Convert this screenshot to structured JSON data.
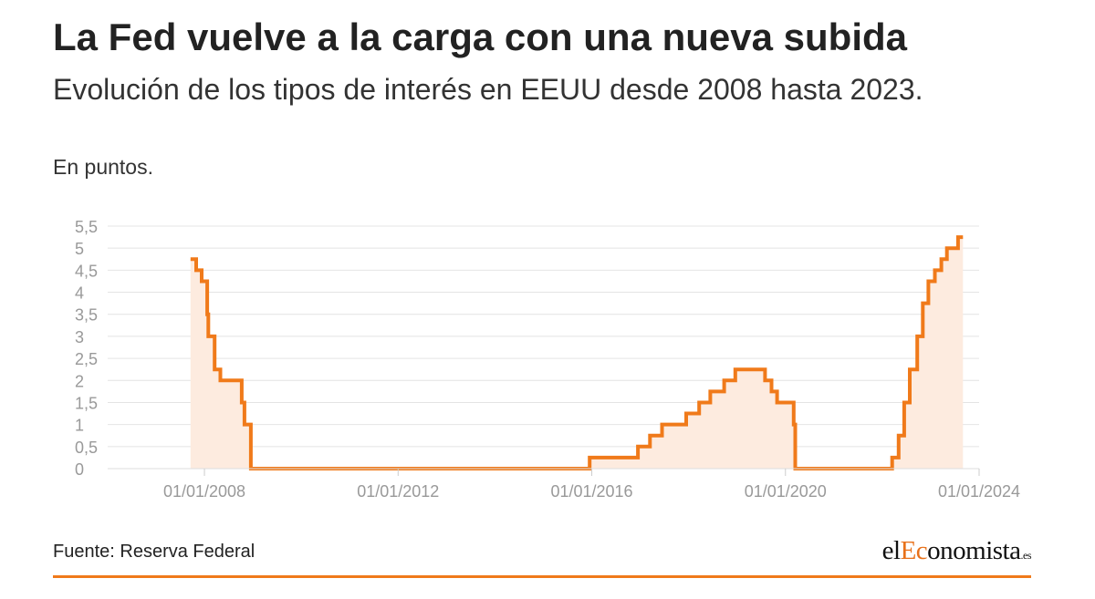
{
  "header": {
    "title": "La Fed vuelve a la carga con una nueva subida",
    "subtitle": "Evolución de los tipos de interés en EEUU desde 2008 hasta 2023.",
    "units": "En puntos."
  },
  "footer": {
    "source": "Fuente: Reserva Federal",
    "logo": {
      "prefix": "el",
      "accent": "Ec",
      "rest": "onomista",
      "tld": ".es"
    }
  },
  "colors": {
    "line": "#f07a1a",
    "area": "#fdebdf",
    "grid": "#e4e4e4",
    "axis_text": "#999999",
    "accent": "#e8711a"
  },
  "chart_data": {
    "type": "area",
    "step": true,
    "title": "",
    "xlabel": "",
    "ylabel": "",
    "ylim": [
      0,
      5.5
    ],
    "xlim": [
      "2006-01-01",
      "2024-01-01"
    ],
    "grid": true,
    "y_ticks": [
      {
        "v": 0,
        "label": "0"
      },
      {
        "v": 0.5,
        "label": "0,5"
      },
      {
        "v": 1,
        "label": "1"
      },
      {
        "v": 1.5,
        "label": "1,5"
      },
      {
        "v": 2,
        "label": "2"
      },
      {
        "v": 2.5,
        "label": "2,5"
      },
      {
        "v": 3,
        "label": "3"
      },
      {
        "v": 3.5,
        "label": "3,5"
      },
      {
        "v": 4,
        "label": "4"
      },
      {
        "v": 4.5,
        "label": "4,5"
      },
      {
        "v": 5,
        "label": "5"
      },
      {
        "v": 5.5,
        "label": "5,5"
      }
    ],
    "x_ticks": [
      {
        "date": "2008-01-01",
        "label": "01/01/2008"
      },
      {
        "date": "2012-01-01",
        "label": "01/01/2012"
      },
      {
        "date": "2016-01-01",
        "label": "01/01/2016"
      },
      {
        "date": "2020-01-01",
        "label": "01/01/2020"
      },
      {
        "date": "2024-01-01",
        "label": "01/01/2024"
      }
    ],
    "series": [
      {
        "points": [
          [
            "2007-09-18",
            4.75
          ],
          [
            "2007-10-31",
            4.5
          ],
          [
            "2007-12-11",
            4.25
          ],
          [
            "2008-01-22",
            3.5
          ],
          [
            "2008-01-30",
            3.0
          ],
          [
            "2008-03-18",
            2.25
          ],
          [
            "2008-04-30",
            2.0
          ],
          [
            "2008-10-08",
            1.5
          ],
          [
            "2008-10-29",
            1.0
          ],
          [
            "2008-12-16",
            0.0
          ],
          [
            "2015-12-16",
            0.25
          ],
          [
            "2016-12-14",
            0.5
          ],
          [
            "2017-03-15",
            0.75
          ],
          [
            "2017-06-14",
            1.0
          ],
          [
            "2017-12-13",
            1.25
          ],
          [
            "2018-03-21",
            1.5
          ],
          [
            "2018-06-13",
            1.75
          ],
          [
            "2018-09-26",
            2.0
          ],
          [
            "2018-12-19",
            2.25
          ],
          [
            "2019-07-31",
            2.0
          ],
          [
            "2019-09-18",
            1.75
          ],
          [
            "2019-10-30",
            1.5
          ],
          [
            "2020-03-03",
            1.0
          ],
          [
            "2020-03-15",
            0.0
          ],
          [
            "2022-03-16",
            0.25
          ],
          [
            "2022-05-04",
            0.75
          ],
          [
            "2022-06-15",
            1.5
          ],
          [
            "2022-07-27",
            2.25
          ],
          [
            "2022-09-21",
            3.0
          ],
          [
            "2022-11-02",
            3.75
          ],
          [
            "2022-12-14",
            4.25
          ],
          [
            "2023-02-01",
            4.5
          ],
          [
            "2023-03-22",
            4.75
          ],
          [
            "2023-05-03",
            5.0
          ],
          [
            "2023-07-26",
            5.25
          ],
          [
            "2023-09-01",
            5.25
          ]
        ]
      }
    ]
  }
}
